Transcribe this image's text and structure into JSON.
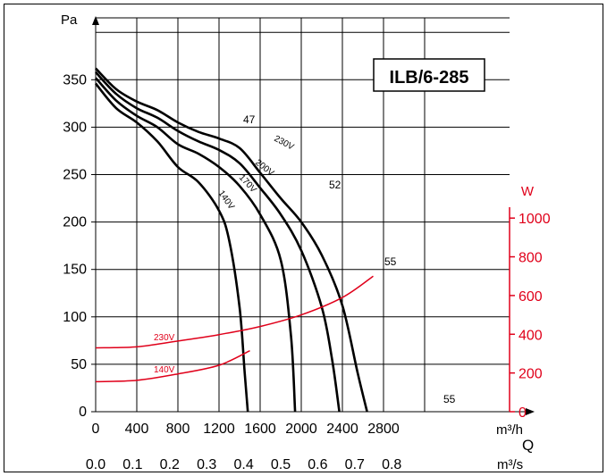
{
  "chart_data": {
    "type": "line",
    "model_label": "ILB/6-285",
    "pressure_axis": {
      "unit": "Pa",
      "range": [
        0,
        375
      ],
      "ticks": [
        0,
        50,
        100,
        150,
        200,
        250,
        300,
        350
      ]
    },
    "flow_axis": {
      "unit": "m³/h",
      "range": [
        0,
        3200
      ],
      "ticks": [
        0,
        400,
        800,
        1200,
        1600,
        2000,
        2400,
        2800
      ]
    },
    "flow_axis_si": {
      "unit": "m³/s",
      "ticks": [
        0.0,
        0.1,
        0.2,
        0.3,
        0.4,
        0.5,
        0.6,
        0.7,
        0.8
      ]
    },
    "flow_symbol": "Q",
    "power_axis": {
      "unit": "W",
      "range": [
        0,
        1000
      ],
      "ticks": [
        0,
        200,
        400,
        600,
        800,
        1000
      ],
      "color": "#e0001a"
    },
    "grid": true,
    "pressure_series": [
      {
        "name": "230V",
        "color": "#000000",
        "points": [
          [
            0,
            362
          ],
          [
            200,
            340
          ],
          [
            400,
            327
          ],
          [
            600,
            318
          ],
          [
            800,
            305
          ],
          [
            1000,
            295
          ],
          [
            1200,
            288
          ],
          [
            1400,
            278
          ],
          [
            1600,
            252
          ],
          [
            1800,
            225
          ],
          [
            2000,
            200
          ],
          [
            2200,
            165
          ],
          [
            2400,
            112
          ],
          [
            2550,
            40
          ],
          [
            2640,
            0
          ]
        ]
      },
      {
        "name": "200V",
        "color": "#000000",
        "points": [
          [
            0,
            358
          ],
          [
            200,
            335
          ],
          [
            400,
            320
          ],
          [
            600,
            310
          ],
          [
            800,
            296
          ],
          [
            1000,
            285
          ],
          [
            1200,
            276
          ],
          [
            1400,
            262
          ],
          [
            1600,
            236
          ],
          [
            1800,
            208
          ],
          [
            2000,
            170
          ],
          [
            2200,
            110
          ],
          [
            2300,
            55
          ],
          [
            2370,
            0
          ]
        ]
      },
      {
        "name": "170V",
        "color": "#000000",
        "points": [
          [
            0,
            352
          ],
          [
            200,
            328
          ],
          [
            400,
            312
          ],
          [
            600,
            300
          ],
          [
            800,
            282
          ],
          [
            1000,
            272
          ],
          [
            1200,
            258
          ],
          [
            1400,
            238
          ],
          [
            1600,
            208
          ],
          [
            1800,
            160
          ],
          [
            1900,
            80
          ],
          [
            1940,
            0
          ]
        ]
      },
      {
        "name": "140V",
        "color": "#000000",
        "points": [
          [
            0,
            346
          ],
          [
            200,
            320
          ],
          [
            400,
            305
          ],
          [
            600,
            285
          ],
          [
            800,
            258
          ],
          [
            1000,
            242
          ],
          [
            1200,
            212
          ],
          [
            1300,
            180
          ],
          [
            1400,
            110
          ],
          [
            1450,
            40
          ],
          [
            1480,
            0
          ]
        ]
      }
    ],
    "power_series": [
      {
        "name": "230V",
        "color": "#e0001a",
        "points": [
          [
            0,
            330
          ],
          [
            400,
            335
          ],
          [
            800,
            365
          ],
          [
            1200,
            398
          ],
          [
            1600,
            440
          ],
          [
            2000,
            500
          ],
          [
            2400,
            590
          ],
          [
            2700,
            700
          ]
        ]
      },
      {
        "name": "140V",
        "color": "#e0001a",
        "points": [
          [
            0,
            155
          ],
          [
            400,
            162
          ],
          [
            800,
            195
          ],
          [
            1200,
            240
          ],
          [
            1500,
            315
          ]
        ]
      }
    ],
    "annotations": [
      {
        "text": "47",
        "color": "#2c4a9a"
      },
      {
        "text": "52",
        "color": "#2c4a9a"
      },
      {
        "text": "55",
        "color": "#2c4a9a"
      },
      {
        "text": "55",
        "color": "#2c4a9a"
      }
    ]
  }
}
